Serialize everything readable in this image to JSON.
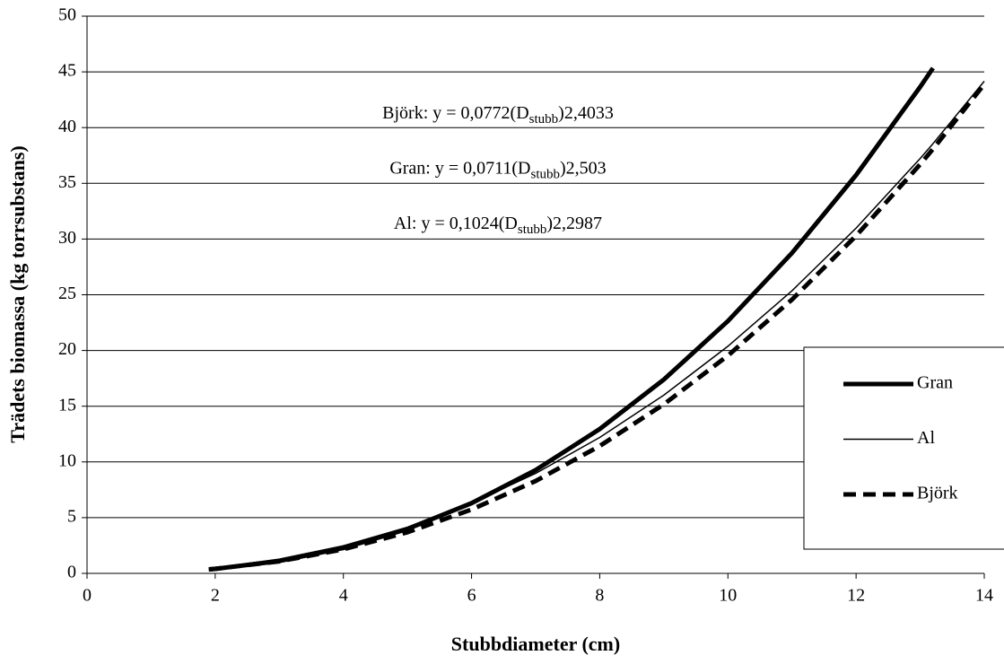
{
  "chart_data": {
    "type": "line",
    "x_label": "Stubbdiameter (cm)",
    "y_label": "Trädets biomassa (kg torrsubstans)",
    "x": [
      1.9,
      2,
      3,
      4,
      5,
      6,
      7,
      8,
      9,
      10,
      11,
      12,
      13,
      13.2,
      14
    ],
    "series": [
      {
        "name": "Gran",
        "color": "#000000",
        "width": 5,
        "dashed": false,
        "values": [
          0.35,
          0.4,
          1.11,
          2.28,
          3.99,
          6.3,
          9.27,
          12.95,
          17.39,
          22.64,
          28.75,
          35.74,
          43.65,
          45.34,
          null
        ]
      },
      {
        "name": "Al",
        "color": "#000000",
        "width": 1.5,
        "dashed": false,
        "values": [
          0.45,
          0.5,
          1.28,
          2.48,
          4.14,
          6.3,
          8.97,
          12.2,
          15.99,
          20.38,
          25.36,
          30.98,
          37.23,
          38.56,
          44.16
        ]
      },
      {
        "name": "Björk",
        "color": "#000000",
        "width": 5,
        "dashed": true,
        "values": [
          0.36,
          0.41,
          1.08,
          2.16,
          3.69,
          5.73,
          8.29,
          11.43,
          15.17,
          19.54,
          24.57,
          30.29,
          36.7,
          38.08,
          43.89
        ]
      }
    ],
    "annotations": [
      {
        "text": "Björk: y = 0,0772(D",
        "sub": "stubb",
        "tail": ")2,4033"
      },
      {
        "text": "Gran: y = 0,0711(D",
        "sub": "stubb",
        "tail": ")2,503"
      },
      {
        "text": "Al: y = 0,1024(D",
        "sub": "stubb",
        "tail": ")2,2987"
      }
    ],
    "xlim": [
      0,
      14
    ],
    "xticks": [
      0,
      2,
      4,
      6,
      8,
      10,
      12,
      14
    ],
    "ylim": [
      0,
      50
    ],
    "yticks": [
      0,
      5,
      10,
      15,
      20,
      25,
      30,
      35,
      40,
      45,
      50
    ],
    "grid": true,
    "legend": "right"
  }
}
